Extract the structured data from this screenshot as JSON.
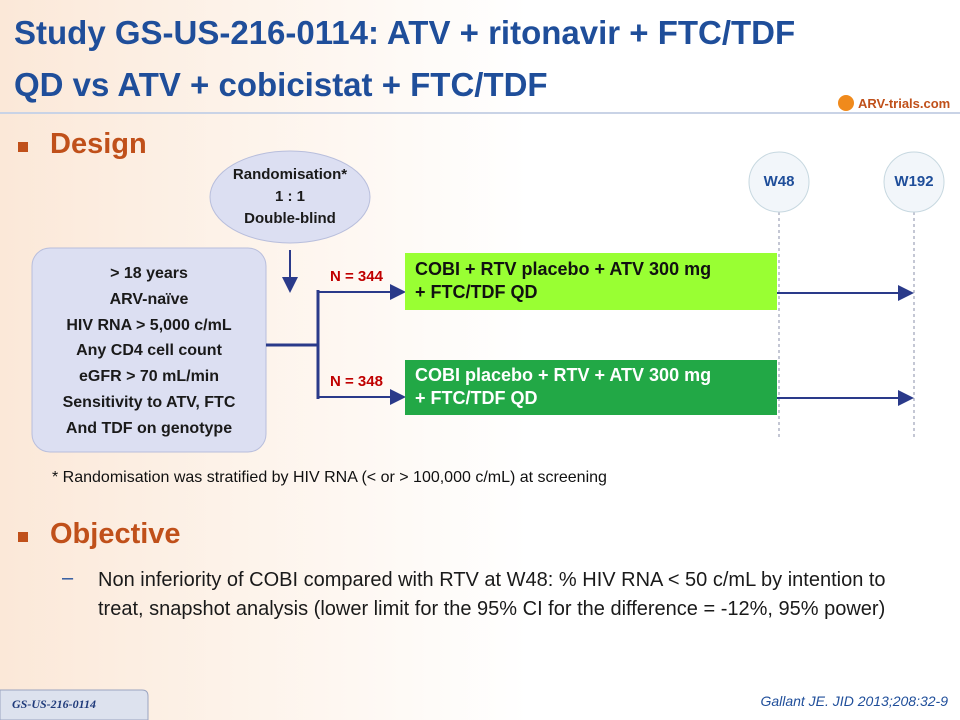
{
  "header": {
    "title_lines": [
      "Study GS-US-216-0114: ATV + ritonavir + FTC/TDF",
      "QD vs ATV + cobicistat + FTC/TDF"
    ],
    "logo": "ARV-trials.com"
  },
  "design": {
    "heading": "Design",
    "randomisation": [
      "Randomisation*",
      "1 : 1",
      "Double-blind"
    ],
    "eligibility": [
      "> 18 years",
      "ARV-naïve",
      "HIV RNA > 5,000 c/mL",
      "Any CD4 cell count",
      "eGFR > 70 mL/min",
      "Sensitivity to ATV, FTC",
      "And TDF on genotype"
    ],
    "timepoints": [
      "W48",
      "W192"
    ],
    "arms": [
      {
        "n": "N = 344",
        "lines": [
          "COBI + RTV placebo + ATV 300 mg",
          "+ FTC/TDF QD"
        ]
      },
      {
        "n": "N = 348",
        "lines": [
          "COBI placebo + RTV + ATV 300 mg",
          "+ FTC/TDF QD"
        ]
      }
    ],
    "footnote": "* Randomisation was stratified by HIV RNA (< or > 100,000 c/mL) at screening"
  },
  "objective": {
    "heading": "Objective",
    "dash": "–",
    "text": "Non inferiority of COBI compared with RTV at W48: % HIV RNA < 50 c/mL by intention to treat, snapshot analysis (lower limit for the 95% CI for the difference = -12%, 95% power)"
  },
  "footer": {
    "tab": "GS-US-216-0114",
    "citation": "Gallant JE. JID 2013;208:32-9"
  }
}
